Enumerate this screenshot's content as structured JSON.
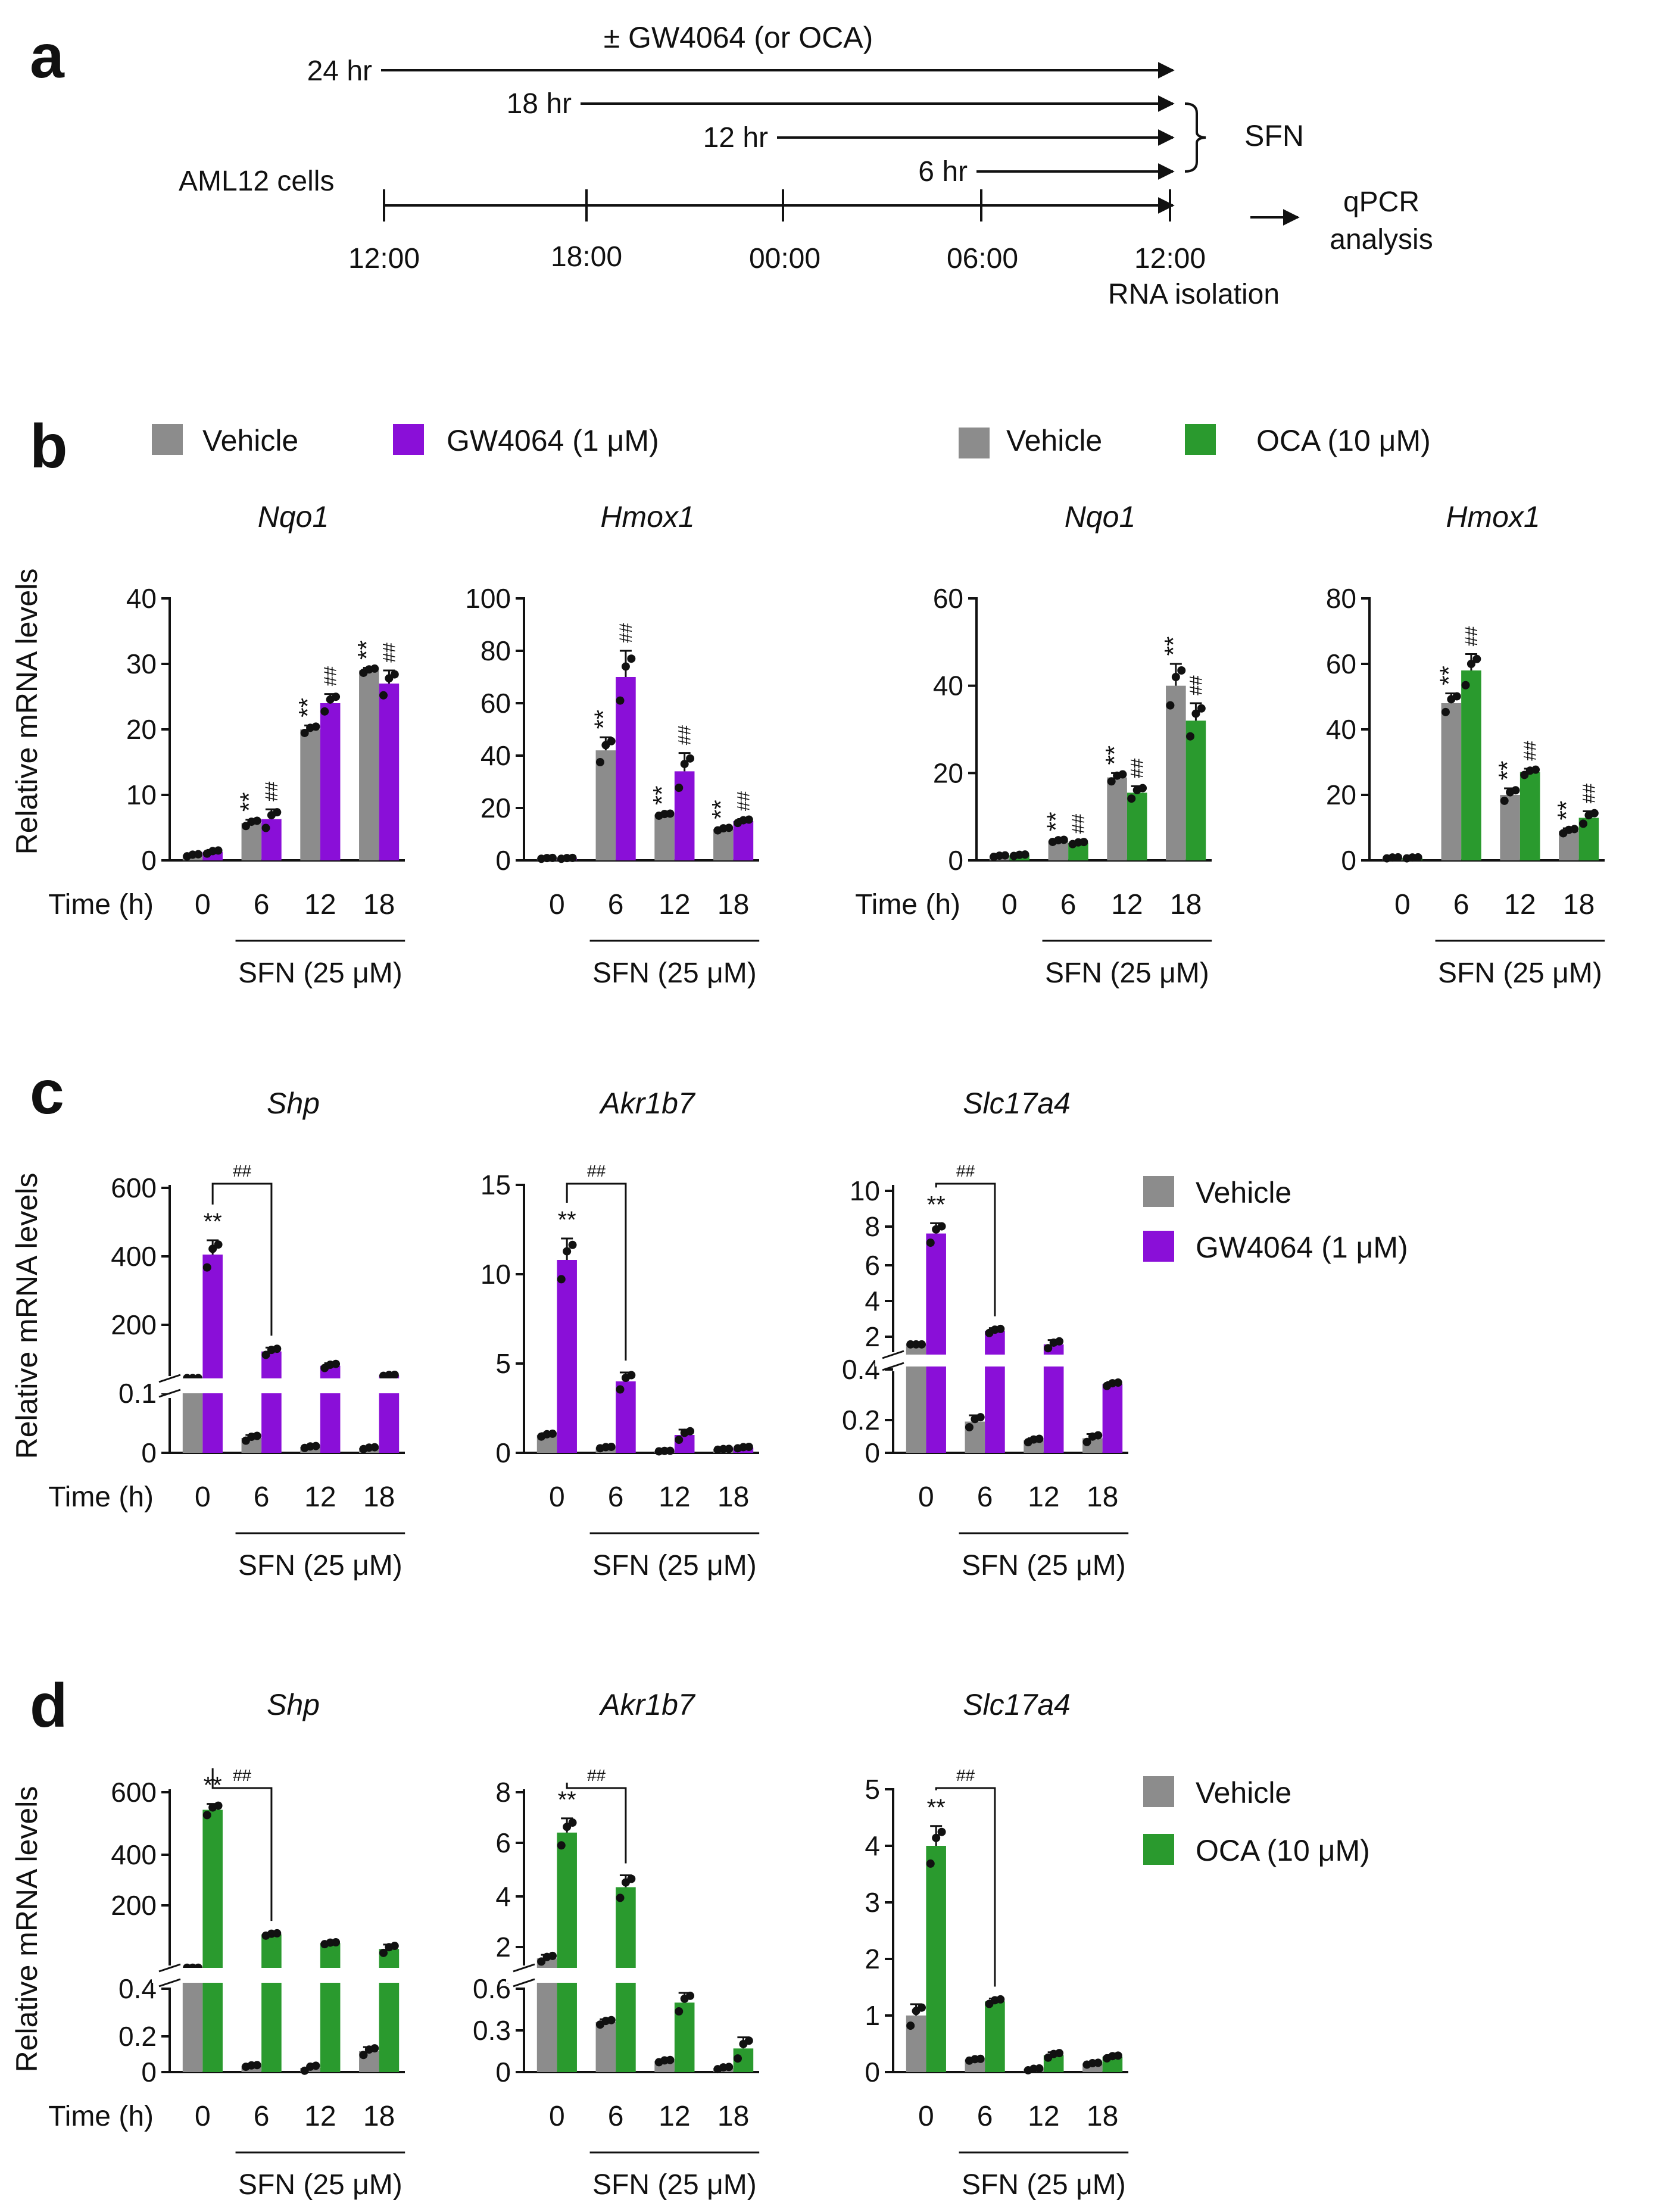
{
  "colors": {
    "vehicle": "#8c8c8c",
    "gw4064": "#8a0fd8",
    "oca": "#2a9a2e",
    "axis": "#111111",
    "point": "#111111"
  },
  "panel_a": {
    "letter": "a",
    "treatment_label": "± GW4064 (or OCA)",
    "durations": [
      "24 hr",
      "18 hr",
      "12 hr",
      "6 hr"
    ],
    "sfn_label": "SFN",
    "cells_label": "AML12 cells",
    "times": [
      "12:00",
      "18:00",
      "00:00",
      "06:00",
      "12:00"
    ],
    "rna_label": "RNA isolation",
    "qpcr_label_1": "qPCR",
    "qpcr_label_2": "analysis"
  },
  "labels": {
    "time_label": "Time (h)",
    "sfn_group": "SFN (25 μM)",
    "ylabel": "Relative mRNA levels"
  },
  "legends": {
    "b_left": [
      {
        "name": "Vehicle",
        "color": "#8c8c8c"
      },
      {
        "name": "GW4064 (1 μM)",
        "color": "#8a0fd8"
      }
    ],
    "b_right": [
      {
        "name": "Vehicle",
        "color": "#8c8c8c"
      },
      {
        "name": "OCA (10 μM)",
        "color": "#2a9a2e"
      }
    ],
    "c": [
      {
        "name": "Vehicle",
        "color": "#8c8c8c"
      },
      {
        "name": "GW4064 (1 μM)",
        "color": "#8a0fd8"
      }
    ],
    "d": [
      {
        "name": "Vehicle",
        "color": "#8c8c8c"
      },
      {
        "name": "OCA (10 μM)",
        "color": "#2a9a2e"
      }
    ]
  },
  "chart_data": [
    {
      "id": "b1",
      "panel": "b",
      "type": "bar",
      "title": "Nqo1",
      "treatment": "GW4064 (1 μM)",
      "categories": [
        "0",
        "6",
        "12",
        "18"
      ],
      "yticks": [
        "0",
        "10",
        "20",
        "30",
        "40"
      ],
      "ylim": [
        0,
        40
      ],
      "series": [
        {
          "name": "Vehicle",
          "values": [
            0.8,
            5.7,
            20,
            29
          ],
          "errors": [
            0.2,
            0.5,
            0.6,
            0.4
          ]
        },
        {
          "name": "GW4064 (1 μM)",
          "values": [
            1.3,
            6.3,
            24,
            27
          ],
          "errors": [
            0.3,
            1.5,
            1.4,
            2
          ]
        }
      ],
      "sig_vehicle": [
        "",
        "**",
        "**",
        "**"
      ],
      "sig_treated": [
        "",
        "##",
        "##",
        "##"
      ]
    },
    {
      "id": "b2",
      "panel": "b",
      "type": "bar",
      "title": "Hmox1",
      "treatment": "GW4064 (1 μM)",
      "categories": [
        "0",
        "6",
        "12",
        "18"
      ],
      "yticks": [
        "0",
        "20",
        "40",
        "60",
        "80",
        "100"
      ],
      "ylim": [
        0,
        100
      ],
      "series": [
        {
          "name": "Vehicle",
          "values": [
            0.8,
            42,
            17.5,
            12
          ],
          "errors": [
            0.2,
            5,
            0.5,
            0.6
          ]
        },
        {
          "name": "GW4064 (1 μM)",
          "values": [
            0.8,
            70,
            34,
            15
          ],
          "errors": [
            0.2,
            10,
            7,
            0.8
          ]
        }
      ],
      "sig_vehicle": [
        "",
        "**",
        "**",
        "**"
      ],
      "sig_treated": [
        "",
        "##",
        "##",
        "##"
      ]
    },
    {
      "id": "b3",
      "panel": "b",
      "type": "bar",
      "title": "Nqo1",
      "treatment": "OCA (10 μM)",
      "categories": [
        "0",
        "6",
        "12",
        "18"
      ],
      "yticks": [
        "0",
        "20",
        "40",
        "60"
      ],
      "ylim": [
        0,
        60
      ],
      "series": [
        {
          "name": "Vehicle",
          "values": [
            1,
            4.5,
            19,
            40
          ],
          "errors": [
            0.2,
            0.3,
            1,
            5
          ]
        },
        {
          "name": "OCA (10 μM)",
          "values": [
            1.2,
            4,
            15.5,
            32
          ],
          "errors": [
            0.2,
            0.3,
            1.5,
            4
          ]
        }
      ],
      "sig_vehicle": [
        "",
        "**",
        "**",
        "**"
      ],
      "sig_treated": [
        "",
        "##",
        "##",
        "##"
      ]
    },
    {
      "id": "b4",
      "panel": "b",
      "type": "bar",
      "title": "Hmox1",
      "treatment": "OCA (10 μM)",
      "categories": [
        "0",
        "6",
        "12",
        "18"
      ],
      "yticks": [
        "0",
        "20",
        "40",
        "60",
        "80"
      ],
      "ylim": [
        0,
        80
      ],
      "series": [
        {
          "name": "Vehicle",
          "values": [
            0.8,
            48,
            20,
            9
          ],
          "errors": [
            0.2,
            3,
            2,
            0.8
          ]
        },
        {
          "name": "OCA (10 μM)",
          "values": [
            0.8,
            58,
            27,
            13
          ],
          "errors": [
            0.2,
            5,
            1,
            2
          ]
        }
      ],
      "sig_vehicle": [
        "",
        "**",
        "**",
        "**"
      ],
      "sig_treated": [
        "",
        "##",
        "##",
        "##"
      ]
    },
    {
      "id": "c1",
      "panel": "c",
      "type": "bar",
      "title": "Shp",
      "treatment": "GW4064 (1 μM)",
      "categories": [
        "0",
        "6",
        "12",
        "18"
      ],
      "yticks": [
        "0",
        "0.1",
        "200",
        "400",
        "600"
      ],
      "broken_axis": {
        "lower": [
          0,
          0.1
        ],
        "upper": [
          0.1,
          600
        ]
      },
      "series": [
        {
          "name": "Vehicle",
          "values": [
            1,
            0.025,
            0.01,
            0.008
          ],
          "errors": [
            0,
            0.005,
            0.002,
            0.002
          ]
        },
        {
          "name": "GW4064 (1 μM)",
          "values": [
            390,
            85,
            40,
            10
          ],
          "errors": [
            45,
            12,
            8,
            2
          ]
        }
      ],
      "sig_vehicle": [
        "",
        "",
        "",
        ""
      ],
      "sig_treated": [
        "**",
        "",
        "",
        ""
      ],
      "bracket": "##"
    },
    {
      "id": "c2",
      "panel": "c",
      "type": "bar",
      "title": "Akr1b7",
      "treatment": "GW4064 (1 μM)",
      "categories": [
        "0",
        "6",
        "12",
        "18"
      ],
      "yticks": [
        "0",
        "5",
        "10",
        "15"
      ],
      "ylim": [
        0,
        15
      ],
      "series": [
        {
          "name": "Vehicle",
          "values": [
            1,
            0.3,
            0.1,
            0.2
          ],
          "errors": [
            0.1,
            0.05,
            0.02,
            0.03
          ]
        },
        {
          "name": "GW4064 (1 μM)",
          "values": [
            10.8,
            4,
            1,
            0.3
          ],
          "errors": [
            1.2,
            0.5,
            0.3,
            0.05
          ]
        }
      ],
      "sig_vehicle": [
        "",
        "",
        "",
        ""
      ],
      "sig_treated": [
        "**",
        "",
        "",
        ""
      ],
      "bracket": "##"
    },
    {
      "id": "c3",
      "panel": "c",
      "type": "bar",
      "title": "Slc17a4",
      "treatment": "GW4064 (1 μM)",
      "categories": [
        "0",
        "6",
        "12",
        "18"
      ],
      "yticks": [
        "0",
        "0.2",
        "0.4",
        "2",
        "4",
        "6",
        "8",
        "10"
      ],
      "broken_axis": {
        "lower": [
          0,
          0.4
        ],
        "upper": [
          0.4,
          10
        ]
      },
      "series": [
        {
          "name": "Vehicle",
          "values": [
            1,
            0.15,
            0.06,
            0.07
          ],
          "errors": [
            0,
            0.03,
            0.01,
            0.02
          ]
        },
        {
          "name": "GW4064 (1 μM)",
          "values": [
            7.5,
            1.8,
            1.0,
            0.33
          ],
          "errors": [
            0.6,
            0.15,
            0.25,
            0.01
          ]
        }
      ],
      "sig_vehicle": [
        "",
        "",
        "",
        ""
      ],
      "sig_treated": [
        "**",
        "",
        "",
        ""
      ],
      "bracket": "##"
    },
    {
      "id": "d1",
      "panel": "d",
      "type": "bar",
      "title": "Shp",
      "treatment": "OCA (10 μM)",
      "categories": [
        "0",
        "6",
        "12",
        "18"
      ],
      "yticks": [
        "0",
        "0.2",
        "0.4",
        "200",
        "400",
        "600"
      ],
      "broken_axis": {
        "lower": [
          0,
          0.4
        ],
        "upper": [
          0.4,
          600
        ]
      },
      "series": [
        {
          "name": "Vehicle",
          "values": [
            1,
            0.03,
            0.02,
            0.1
          ],
          "errors": [
            0,
            0.005,
            0.015,
            0.02
          ]
        },
        {
          "name": "OCA (10 μM)",
          "values": [
            540,
            115,
            85,
            65
          ],
          "errors": [
            20,
            5,
            4,
            15
          ]
        }
      ],
      "sig_vehicle": [
        "",
        "",
        "",
        ""
      ],
      "sig_treated": [
        "**",
        "",
        "",
        ""
      ],
      "bracket": "##"
    },
    {
      "id": "d2",
      "panel": "d",
      "type": "bar",
      "title": "Akr1b7",
      "treatment": "OCA (10 μM)",
      "categories": [
        "0",
        "6",
        "12",
        "18"
      ],
      "yticks": [
        "0",
        "0.3",
        "0.6",
        "2",
        "4",
        "6",
        "8"
      ],
      "broken_axis": {
        "lower": [
          0,
          0.6
        ],
        "upper": [
          0.6,
          8
        ]
      },
      "series": [
        {
          "name": "Vehicle",
          "values": [
            1,
            0.36,
            0.08,
            0.03
          ],
          "errors": [
            0.15,
            0.02,
            0.01,
            0.01
          ]
        },
        {
          "name": "OCA (10 μM)",
          "values": [
            6.3,
            4,
            0.5,
            0.17
          ],
          "errors": [
            0.6,
            0.5,
            0.07,
            0.08
          ]
        }
      ],
      "sig_vehicle": [
        "",
        "",
        "",
        ""
      ],
      "sig_treated": [
        "**",
        "",
        "",
        ""
      ],
      "bracket": "##"
    },
    {
      "id": "d3",
      "panel": "d",
      "type": "bar",
      "title": "Slc17a4",
      "treatment": "OCA (10 μM)",
      "categories": [
        "0",
        "6",
        "12",
        "18"
      ],
      "yticks": [
        "0",
        "1",
        "2",
        "3",
        "4",
        "5"
      ],
      "ylim": [
        0,
        5
      ],
      "series": [
        {
          "name": "Vehicle",
          "values": [
            1,
            0.22,
            0.05,
            0.15
          ],
          "errors": [
            0.2,
            0.02,
            0.02,
            0.02
          ]
        },
        {
          "name": "OCA (10 μM)",
          "values": [
            4,
            1.25,
            0.3,
            0.27
          ],
          "errors": [
            0.35,
            0.05,
            0.05,
            0.03
          ]
        }
      ],
      "sig_vehicle": [
        "",
        "",
        "",
        ""
      ],
      "sig_treated": [
        "**",
        "",
        "",
        ""
      ],
      "bracket": "##"
    }
  ]
}
